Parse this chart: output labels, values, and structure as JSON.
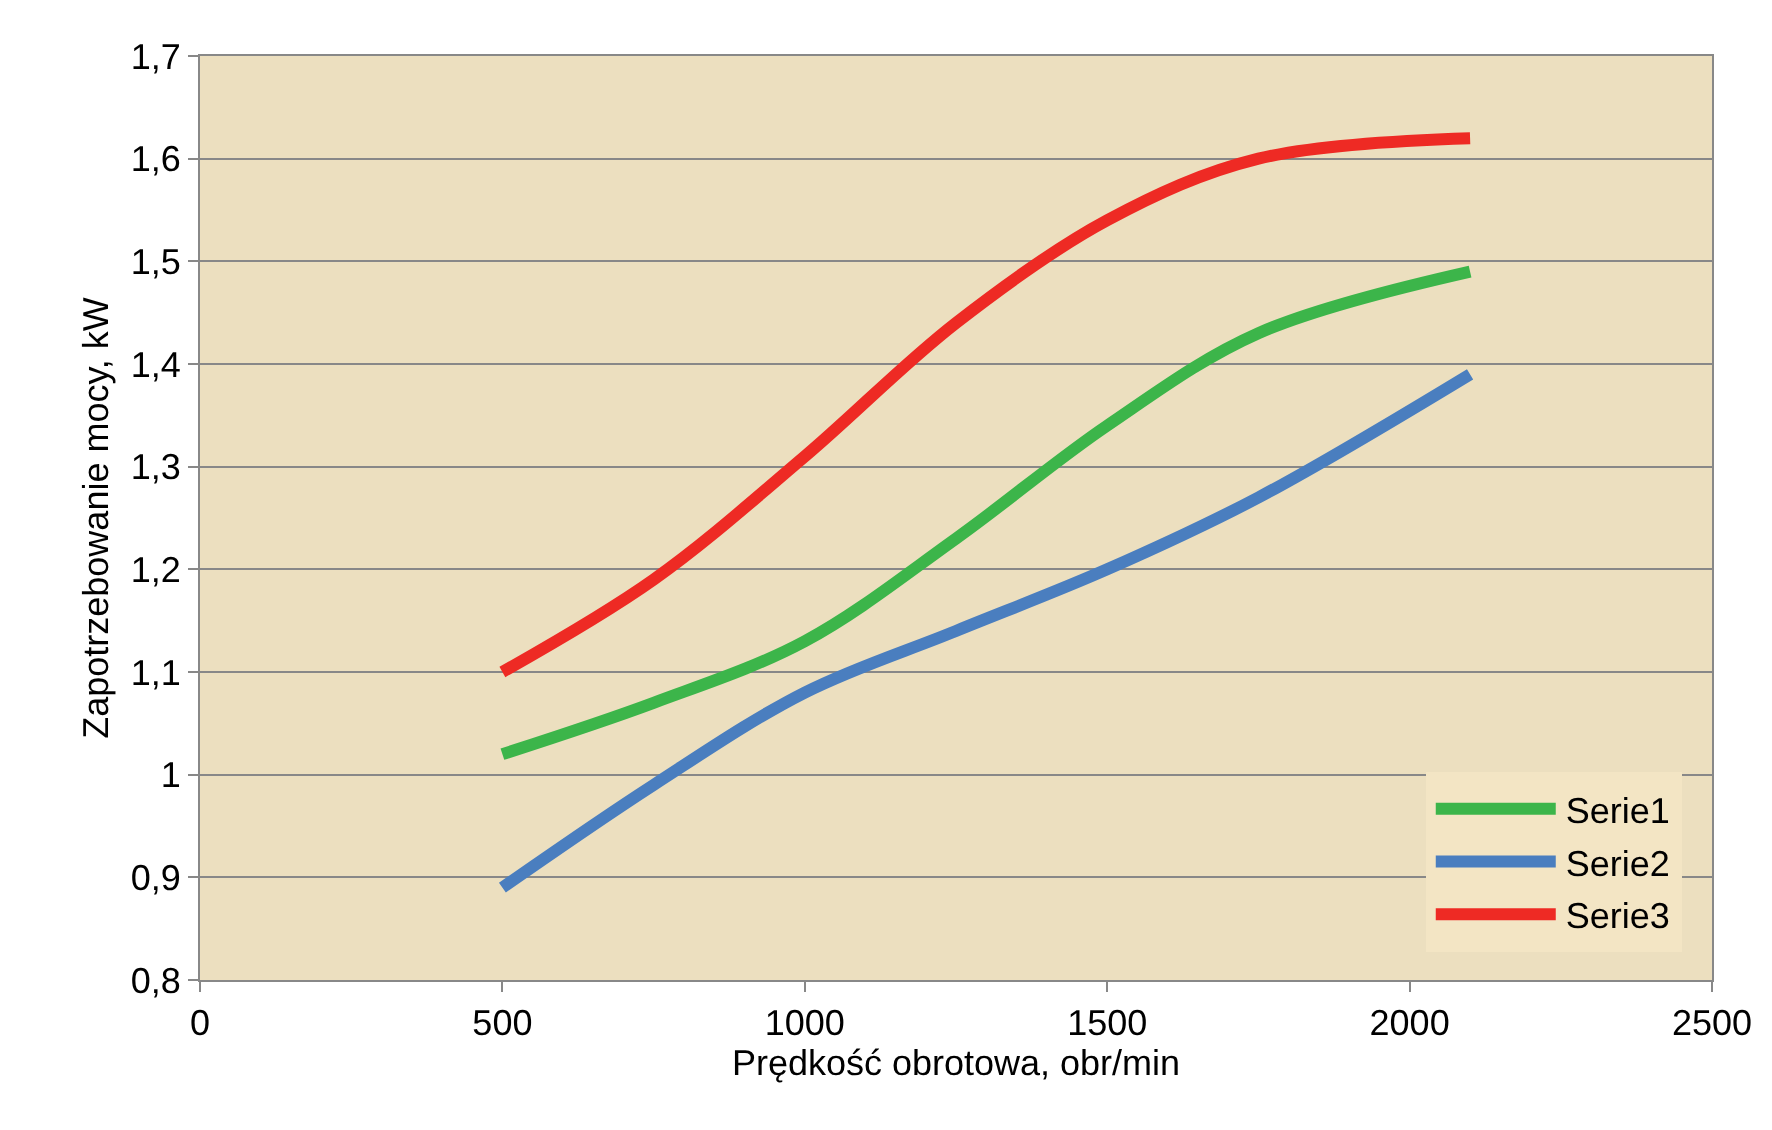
{
  "chart_data": {
    "type": "line",
    "xlabel": "Prędkość obrotowa, obr/min",
    "ylabel": "Zapotrzebowanie mocy, kW",
    "x": [
      500,
      750,
      1000,
      1250,
      1500,
      1750,
      2100
    ],
    "series": [
      {
        "name": "Serie1",
        "color": "#3cb54a",
        "values": [
          1.02,
          1.07,
          1.13,
          1.23,
          1.34,
          1.43,
          1.49
        ]
      },
      {
        "name": "Serie2",
        "color": "#4a7ebf",
        "values": [
          0.89,
          0.99,
          1.08,
          1.14,
          1.2,
          1.27,
          1.39
        ]
      },
      {
        "name": "Serie3",
        "color": "#ee2a24",
        "values": [
          1.1,
          1.19,
          1.31,
          1.44,
          1.54,
          1.6,
          1.62
        ]
      }
    ],
    "xlim": [
      0,
      2500
    ],
    "xticks": [
      0,
      500,
      1000,
      1500,
      2000,
      2500
    ],
    "ylim": [
      0.8,
      1.7
    ],
    "yticks": [
      {
        "value": 0.8,
        "label": "0,8"
      },
      {
        "value": 0.9,
        "label": "0,9"
      },
      1,
      {
        "value": 1.1,
        "label": "1,1"
      },
      {
        "value": 1.2,
        "label": "1,2"
      },
      {
        "value": 1.3,
        "label": "1,3"
      },
      {
        "value": 1.4,
        "label": "1,4"
      },
      {
        "value": 1.5,
        "label": "1,5"
      },
      {
        "value": 1.6,
        "label": "1,6"
      },
      {
        "value": 1.7,
        "label": "1,7"
      }
    ],
    "grid": "y",
    "legend": "bottom right",
    "marker": "none",
    "line_style": "solid"
  }
}
